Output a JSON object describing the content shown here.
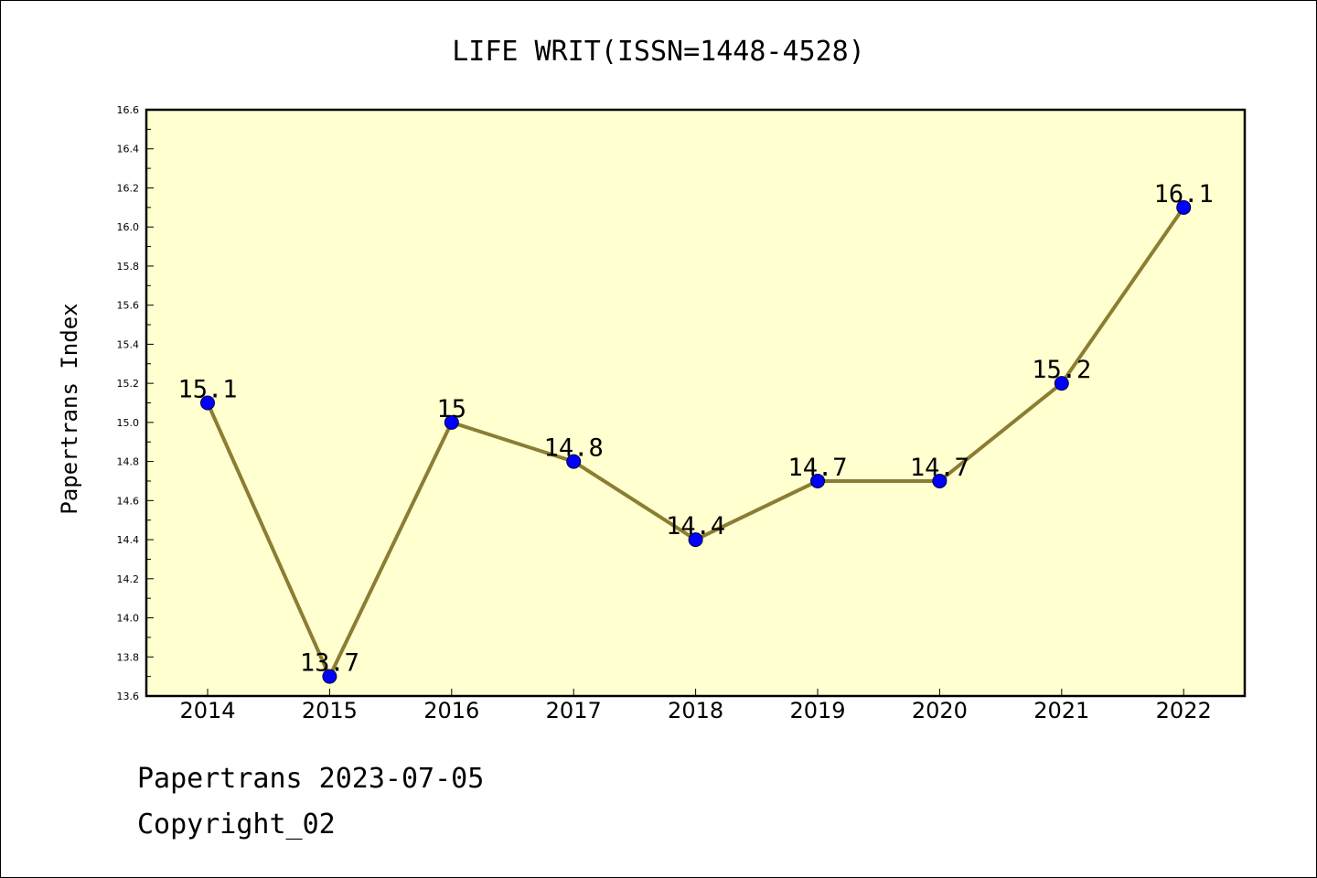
{
  "chart_data": {
    "type": "line",
    "title": "LIFE WRIT(ISSN=1448-4528)",
    "xlabel": "",
    "ylabel": "Papertrans Index",
    "categories": [
      "2014",
      "2015",
      "2016",
      "2017",
      "2018",
      "2019",
      "2020",
      "2021",
      "2022"
    ],
    "series": [
      {
        "values": [
          15.1,
          13.7,
          15.0,
          14.8,
          14.4,
          14.7,
          14.7,
          15.2,
          16.1
        ],
        "labels": [
          "15.1",
          "13.7",
          "15",
          "14.8",
          "14.4",
          "14.7",
          "14.7",
          "15.2",
          "16.1"
        ]
      }
    ],
    "ylim": [
      13.6,
      16.6
    ],
    "yticks": [
      "13.6",
      "13.8",
      "14.0",
      "14.2",
      "14.4",
      "14.6",
      "14.8",
      "15.0",
      "15.2",
      "15.4",
      "15.6",
      "15.8",
      "16.0",
      "16.2",
      "16.4",
      "16.6"
    ],
    "grid": false,
    "legend": "none",
    "colors": {
      "plot_background": "#ffffd0",
      "line": "#8b7d32",
      "marker": "#0000ff"
    }
  },
  "footer": {
    "date_line": "Papertrans 2023-07-05",
    "copyright": "Copyright_02"
  }
}
